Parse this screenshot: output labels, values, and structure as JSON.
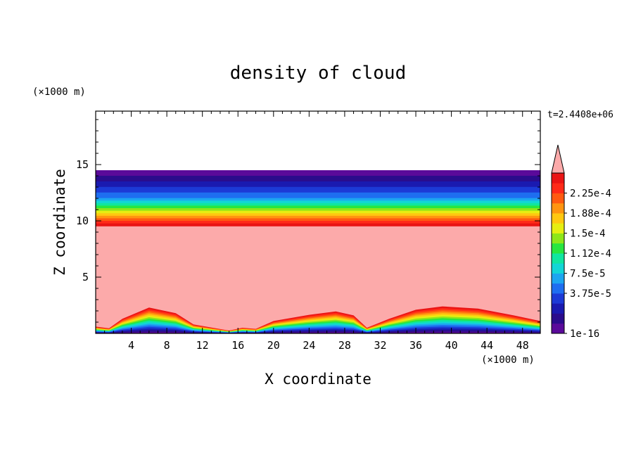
{
  "chart_data": {
    "type": "heatmap",
    "title": "density of cloud",
    "xlabel": "X coordinate",
    "ylabel": "Z coordinate",
    "x_unit": "(×1000 m)",
    "y_unit": "(×1000 m)",
    "timestamp": "t=2.4408e+06",
    "xlim": [
      0,
      50
    ],
    "ylim": [
      0,
      19.75
    ],
    "x_ticks": [
      4,
      8,
      12,
      16,
      20,
      24,
      28,
      32,
      36,
      40,
      44,
      48
    ],
    "y_ticks": [
      5,
      10,
      15
    ],
    "grid": false,
    "colorbar": {
      "labels": [
        "2.25e-4",
        "1.88e-4",
        "1.5e-4",
        "1.12e-4",
        "7.5e-5",
        "3.75e-5",
        "1e-16"
      ],
      "colors": [
        "#5a0a9a",
        "#2a0c8c",
        "#1a1ab0",
        "#1c3ad6",
        "#1e6ef0",
        "#1ca6f0",
        "#12d6d6",
        "#10e6a0",
        "#28e640",
        "#8ee61a",
        "#e6ee12",
        "#ffc810",
        "#ff9410",
        "#ff5a10",
        "#ff2a18",
        "#ea1414"
      ],
      "over_color": "#fcaaaa"
    },
    "bands": {
      "cloud_top_z": 14.5,
      "saturated_top_z": 9.55,
      "bottom_terrain": [
        {
          "x": 0,
          "z": 0.6
        },
        {
          "x": 1.5,
          "z": 0.45
        },
        {
          "x": 3,
          "z": 1.3
        },
        {
          "x": 6,
          "z": 2.3
        },
        {
          "x": 9,
          "z": 1.8
        },
        {
          "x": 11,
          "z": 0.8
        },
        {
          "x": 13.5,
          "z": 0.45
        },
        {
          "x": 15,
          "z": 0.25
        },
        {
          "x": 16.5,
          "z": 0.5
        },
        {
          "x": 18,
          "z": 0.4
        },
        {
          "x": 20,
          "z": 1.1
        },
        {
          "x": 24,
          "z": 1.65
        },
        {
          "x": 27,
          "z": 1.95
        },
        {
          "x": 29,
          "z": 1.6
        },
        {
          "x": 30.5,
          "z": 0.5
        },
        {
          "x": 33,
          "z": 1.3
        },
        {
          "x": 36,
          "z": 2.1
        },
        {
          "x": 39,
          "z": 2.4
        },
        {
          "x": 43,
          "z": 2.2
        },
        {
          "x": 47,
          "z": 1.6
        },
        {
          "x": 50,
          "z": 1.1
        }
      ]
    }
  }
}
